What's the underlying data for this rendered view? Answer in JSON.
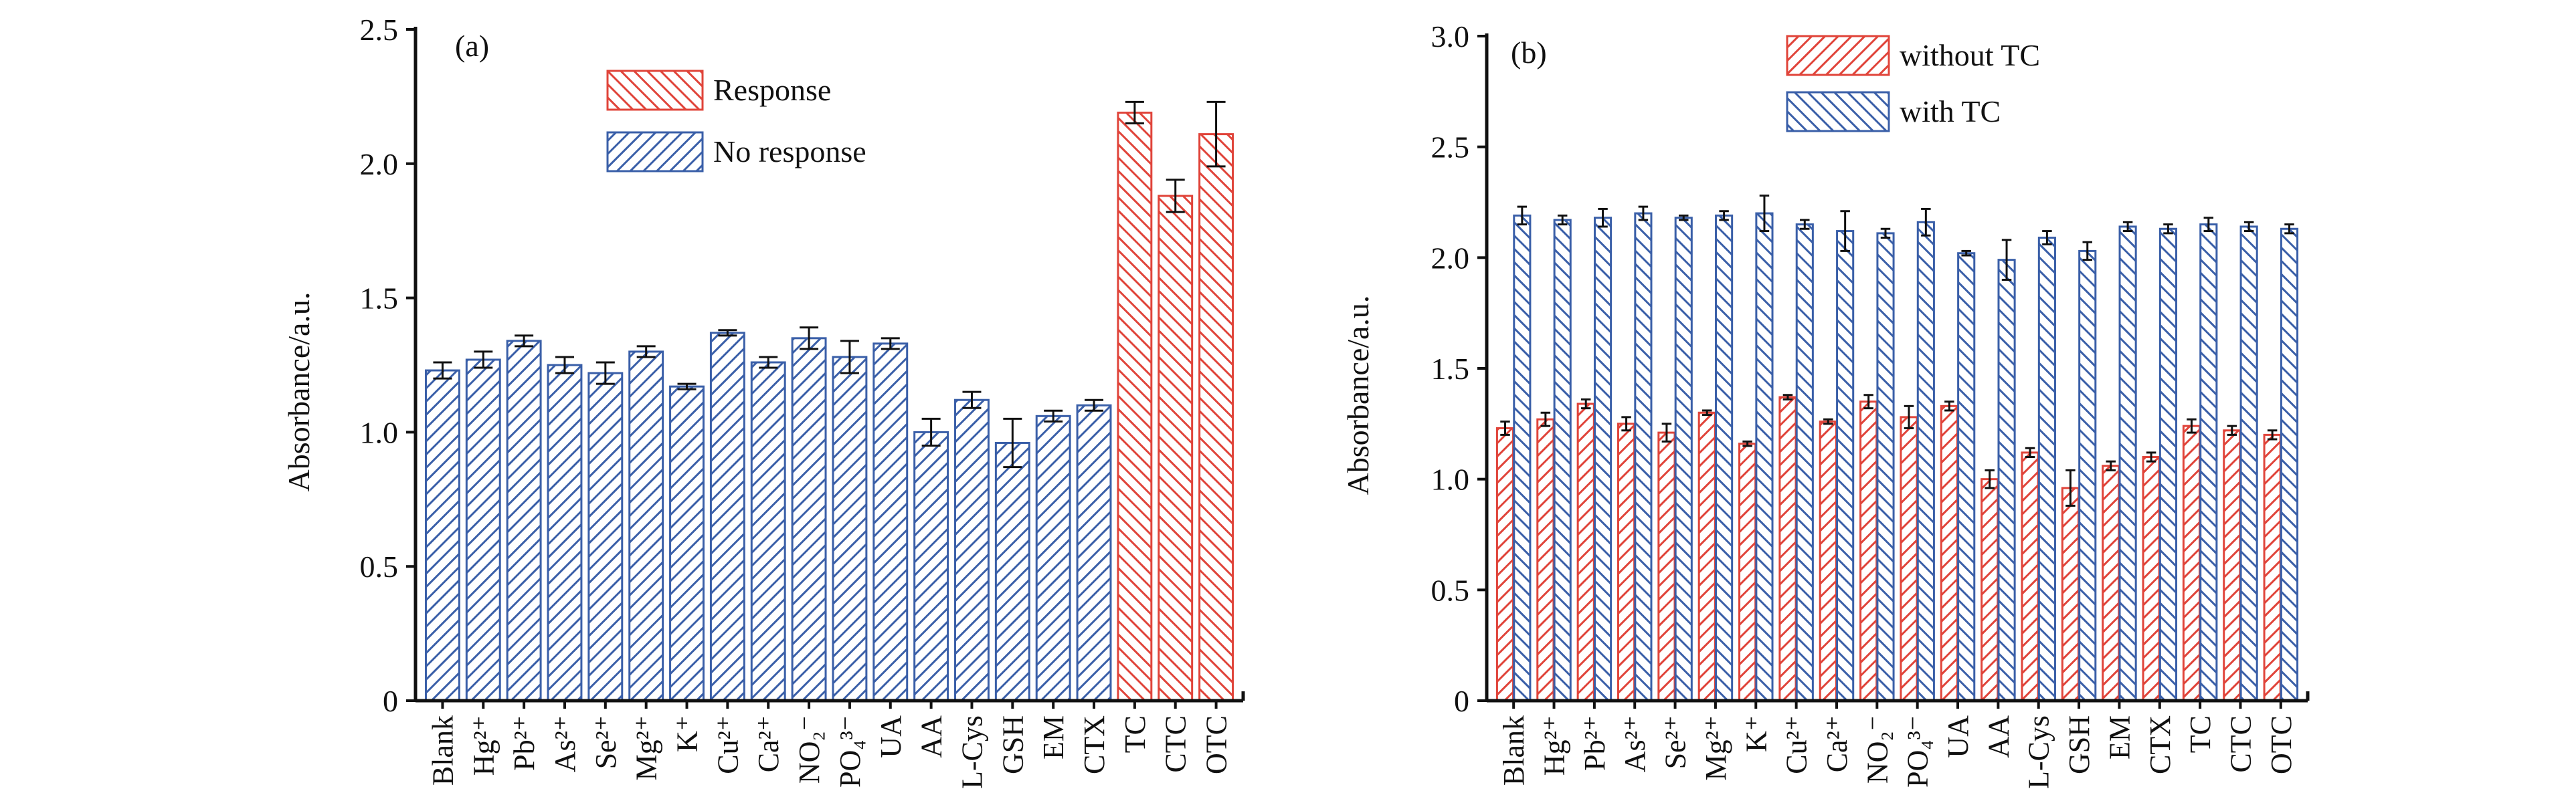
{
  "chart_data": [
    {
      "type": "bar",
      "panel": "(a)",
      "ylabel": "Absorbance/a.u.",
      "grouped": false,
      "ylim": [
        0,
        2.5
      ],
      "yticks": [
        0,
        0.5,
        {
          "value": 1,
          "label": "1.0"
        },
        1.5,
        {
          "value": 2,
          "label": "2.0"
        },
        2.5
      ],
      "categories": [
        "Blank",
        "Hg²⁺",
        "Pb²⁺",
        "As²⁺",
        "Se²⁺",
        "Mg²⁺",
        "K⁺",
        "Cu²⁺",
        "Ca²⁺",
        "NO₂⁻",
        "PO₄³⁻",
        "UA",
        "AA",
        "L-Cys",
        "GSH",
        "EM",
        "CTX",
        "TC",
        "CTC",
        "OTC"
      ],
      "series": [
        {
          "name": "Response",
          "color": "#e0443a",
          "hatch": "back",
          "values": [
            null,
            null,
            null,
            null,
            null,
            null,
            null,
            null,
            null,
            null,
            null,
            null,
            null,
            null,
            null,
            null,
            null,
            2.19,
            1.88,
            2.11
          ],
          "errors": [
            null,
            null,
            null,
            null,
            null,
            null,
            null,
            null,
            null,
            null,
            null,
            null,
            null,
            null,
            null,
            null,
            null,
            0.04,
            0.06,
            0.12
          ]
        },
        {
          "name": "No response",
          "color": "#3a5fa8",
          "hatch": "forward",
          "values": [
            1.23,
            1.27,
            1.34,
            1.25,
            1.22,
            1.3,
            1.17,
            1.37,
            1.26,
            1.35,
            1.28,
            1.33,
            1.0,
            1.12,
            0.96,
            1.06,
            1.1,
            null,
            null,
            null
          ],
          "errors": [
            0.03,
            0.03,
            0.02,
            0.03,
            0.04,
            0.02,
            0.01,
            0.01,
            0.02,
            0.04,
            0.06,
            0.02,
            0.05,
            0.03,
            0.09,
            0.02,
            0.02,
            null,
            null,
            null
          ]
        }
      ]
    },
    {
      "type": "bar",
      "panel": "(b)",
      "ylabel": "Absorbance/a.u.",
      "grouped": true,
      "ylim": [
        0,
        3
      ],
      "yticks": [
        0,
        0.5,
        {
          "value": 1,
          "label": "1.0"
        },
        1.5,
        {
          "value": 2,
          "label": "2.0"
        },
        2.5,
        {
          "value": 3,
          "label": "3.0"
        }
      ],
      "categories": [
        "Blank",
        "Hg²⁺",
        "Pb²⁺",
        "As²⁺",
        "Se²⁺",
        "Mg²⁺",
        "K⁺",
        "Cu²⁺",
        "Ca²⁺",
        "NO₂⁻",
        "PO₄³⁻",
        "UA",
        "AA",
        "L-Cys",
        "GSH",
        "EM",
        "CTX",
        "TC",
        "CTC",
        "OTC"
      ],
      "series": [
        {
          "name": "without TC",
          "color": "#e0443a",
          "hatch": "forward",
          "values": [
            1.23,
            1.27,
            1.34,
            1.25,
            1.21,
            1.3,
            1.16,
            1.37,
            1.26,
            1.35,
            1.28,
            1.33,
            1.0,
            1.12,
            0.96,
            1.06,
            1.1,
            1.24,
            1.22,
            1.2
          ],
          "errors": [
            0.03,
            0.03,
            0.02,
            0.03,
            0.04,
            0.01,
            0.01,
            0.01,
            0.01,
            0.03,
            0.05,
            0.02,
            0.04,
            0.02,
            0.08,
            0.02,
            0.02,
            0.03,
            0.02,
            0.02
          ]
        },
        {
          "name": "with TC",
          "color": "#3a5fa8",
          "hatch": "back",
          "values": [
            2.19,
            2.17,
            2.18,
            2.2,
            2.18,
            2.19,
            2.2,
            2.15,
            2.12,
            2.11,
            2.16,
            2.02,
            1.99,
            2.09,
            2.03,
            2.14,
            2.13,
            2.15,
            2.14,
            2.13
          ],
          "errors": [
            0.04,
            0.02,
            0.04,
            0.03,
            0.01,
            0.02,
            0.08,
            0.02,
            0.09,
            0.02,
            0.06,
            0.01,
            0.09,
            0.03,
            0.04,
            0.02,
            0.02,
            0.03,
            0.02,
            0.02
          ]
        }
      ]
    }
  ]
}
